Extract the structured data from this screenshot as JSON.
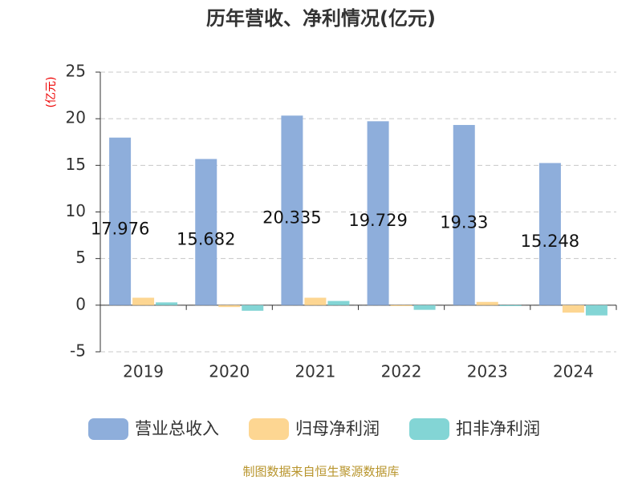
{
  "chart_data": {
    "type": "bar",
    "title": "历年营收、净利情况(亿元)",
    "y_label": "(亿元)",
    "categories": [
      "2019",
      "2020",
      "2021",
      "2022",
      "2023",
      "2024"
    ],
    "series": [
      {
        "name": "营业总收入",
        "color": "#8eaedb",
        "values": [
          17.976,
          15.682,
          20.335,
          19.729,
          19.33,
          15.248
        ],
        "data_labels": true
      },
      {
        "name": "归母净利润",
        "color": "#fdd692",
        "values": [
          0.8,
          -0.2,
          0.8,
          -0.1,
          0.35,
          -0.8
        ]
      },
      {
        "name": "扣非净利润",
        "color": "#83d5d5",
        "values": [
          0.3,
          -0.6,
          0.45,
          -0.5,
          -0.1,
          -1.1
        ]
      }
    ],
    "ylim": [
      -5,
      25
    ],
    "yticks": [
      -5,
      0,
      5,
      10,
      15,
      20,
      25
    ],
    "grid": true,
    "legend": "bottom",
    "source": "制图数据来自恒生聚源数据库"
  }
}
